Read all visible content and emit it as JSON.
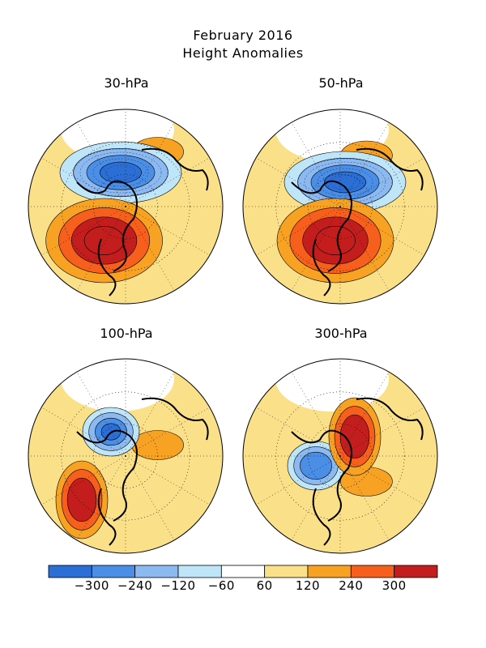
{
  "title": {
    "line1": "February 2016",
    "line2": "Height Anomalies"
  },
  "panels": [
    {
      "label": "30-hPa",
      "neg_center": [
        -0.05,
        -0.35
      ],
      "neg_amp": 9,
      "pos_center": [
        -0.22,
        0.35
      ],
      "pos_amp": 10,
      "secondary_pos": [
        0.55,
        -0.75
      ]
    },
    {
      "label": "50-hPa",
      "neg_center": [
        0.05,
        -0.25
      ],
      "neg_amp": 8,
      "pos_center": [
        -0.05,
        0.35
      ],
      "pos_amp": 8,
      "secondary_pos": [
        0.45,
        -0.7
      ]
    },
    {
      "label": "100-hPa",
      "neg_center": [
        -0.15,
        -0.25
      ],
      "neg_amp": 4,
      "pos_center": [
        -0.45,
        0.45
      ],
      "pos_amp": 3,
      "secondary_pos": [
        0.55,
        -0.15
      ]
    },
    {
      "label": "300-hPa",
      "neg_center": [
        -0.25,
        0.1
      ],
      "neg_amp": 3,
      "pos_center": [
        0.15,
        -0.2
      ],
      "pos_amp": 3,
      "secondary_pos": [
        0.45,
        0.35
      ]
    }
  ],
  "colorbar": {
    "colors": [
      "#2b6fd6",
      "#4a8ee6",
      "#8cbaf0",
      "#bfe6f8",
      "#ffffff",
      "#fbe08a",
      "#f7a223",
      "#f75f1c",
      "#c41d1d"
    ],
    "tick_labels": [
      "-300",
      "-240",
      "-120",
      "-60",
      "60",
      "120",
      "240",
      "300"
    ]
  }
}
